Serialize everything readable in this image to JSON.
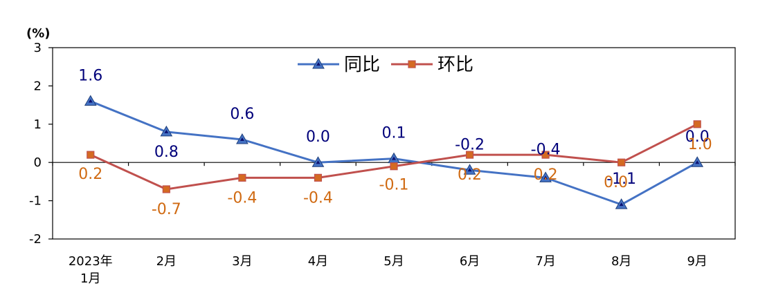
{
  "chart_data": {
    "type": "line",
    "unit_label": "(%)",
    "categories": [
      [
        "2023年",
        "1月"
      ],
      [
        "2月"
      ],
      [
        "3月"
      ],
      [
        "4月"
      ],
      [
        "5月"
      ],
      [
        "6月"
      ],
      [
        "7月"
      ],
      [
        "8月"
      ],
      [
        "9月"
      ]
    ],
    "ylim": [
      -2,
      3
    ],
    "yticks": [
      "3",
      "2",
      "1",
      "0",
      "-1",
      "-2"
    ],
    "legend_position": "top-center",
    "series": [
      {
        "name": "同比",
        "color": "#4472C4",
        "marker": "triangle",
        "values": [
          1.6,
          0.8,
          0.6,
          0.0,
          0.1,
          -0.2,
          -0.4,
          -1.1,
          0.0
        ],
        "labels": [
          "1.6",
          "0.8",
          "0.6",
          "0.0",
          "0.1",
          "-0.2",
          "-0.4",
          "-1.1",
          "0.0"
        ],
        "label_color": "#00007A"
      },
      {
        "name": "环比",
        "color": "#C0504D",
        "marker": "square",
        "values": [
          0.2,
          -0.7,
          -0.4,
          -0.4,
          -0.1,
          0.2,
          0.2,
          0.0,
          1.0
        ],
        "labels": [
          "0.2",
          "-0.7",
          "-0.4",
          "-0.4",
          "-0.1",
          "0.2",
          "0.2",
          "0.0",
          "1.0"
        ],
        "label_color": "#D06A12"
      }
    ]
  }
}
